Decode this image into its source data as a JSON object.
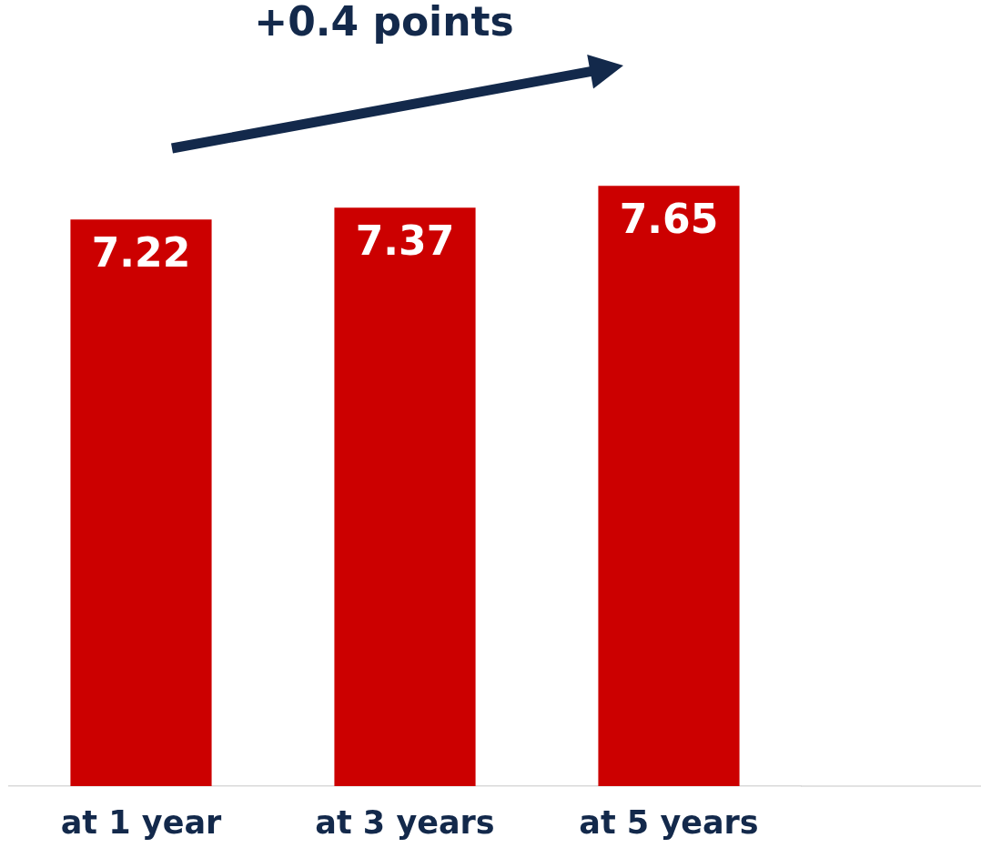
{
  "chart_data": {
    "type": "bar",
    "categories": [
      "at 1 year",
      "at 3 years",
      "at 5 years"
    ],
    "values": [
      7.22,
      7.37,
      7.65
    ],
    "color": "#cc0000",
    "data_labels": true,
    "grid": false,
    "legend": false,
    "annotations": [
      "+0.4 points"
    ]
  }
}
